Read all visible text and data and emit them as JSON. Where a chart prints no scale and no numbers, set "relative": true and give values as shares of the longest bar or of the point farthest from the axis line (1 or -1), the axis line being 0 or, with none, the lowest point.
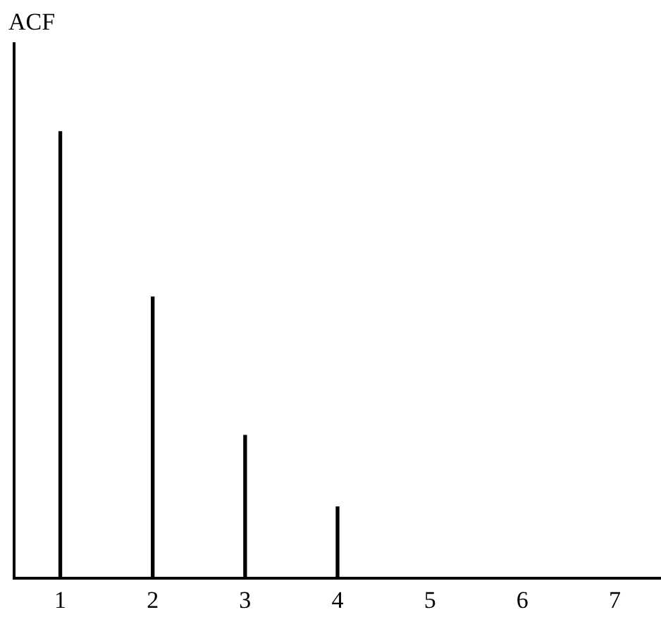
{
  "chart_data": {
    "type": "bar",
    "ylabel": "ACF",
    "categories": [
      "1",
      "2",
      "3",
      "4",
      "5",
      "6",
      "7"
    ],
    "relative": true,
    "series": [
      {
        "color": "#000000",
        "values": [
          1,
          0.63,
          0.32,
          0.16,
          0,
          0,
          0
        ]
      }
    ],
    "grid": false,
    "legend": false
  }
}
